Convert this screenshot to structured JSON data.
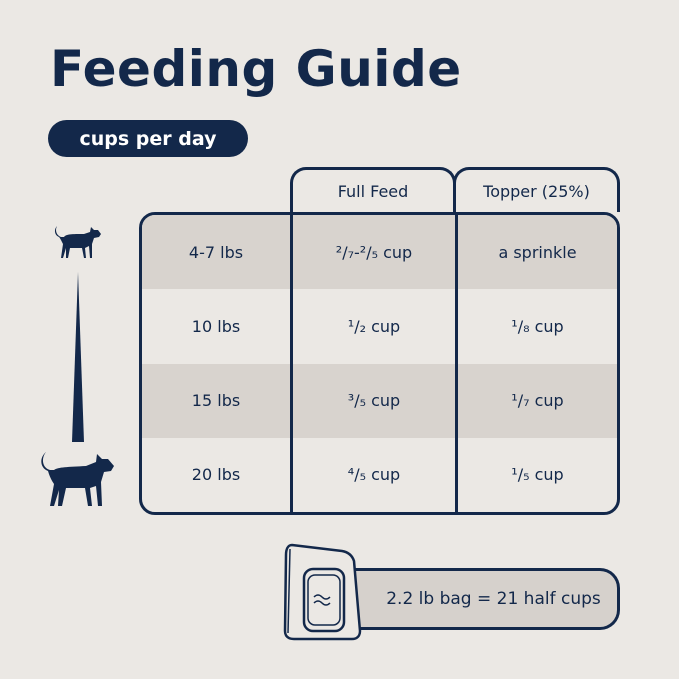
{
  "title": "Feeding Guide",
  "unit_badge": "cups per day",
  "columns": [
    "Full Feed",
    "Topper (25%)"
  ],
  "rows": [
    {
      "weight": "4-7 lbs",
      "full_feed": "²/₇-²/₅ cup",
      "topper": "a sprinkle"
    },
    {
      "weight": "10 lbs",
      "full_feed": "¹/₂ cup",
      "topper": "¹/₈ cup"
    },
    {
      "weight": "15 lbs",
      "full_feed": "³/₅ cup",
      "topper": "¹/₇ cup"
    },
    {
      "weight": "20 lbs",
      "full_feed": "⁴/₅ cup",
      "topper": "¹/₅ cup"
    }
  ],
  "bag_note": "2.2 lb bag = 21 half cups",
  "icons": [
    "small-cat-icon",
    "size-wedge-icon",
    "large-cat-icon",
    "food-bag-icon"
  ],
  "colors": {
    "navy": "#13284a",
    "background": "#ebe8e4",
    "shade": "#d8d3ce"
  }
}
